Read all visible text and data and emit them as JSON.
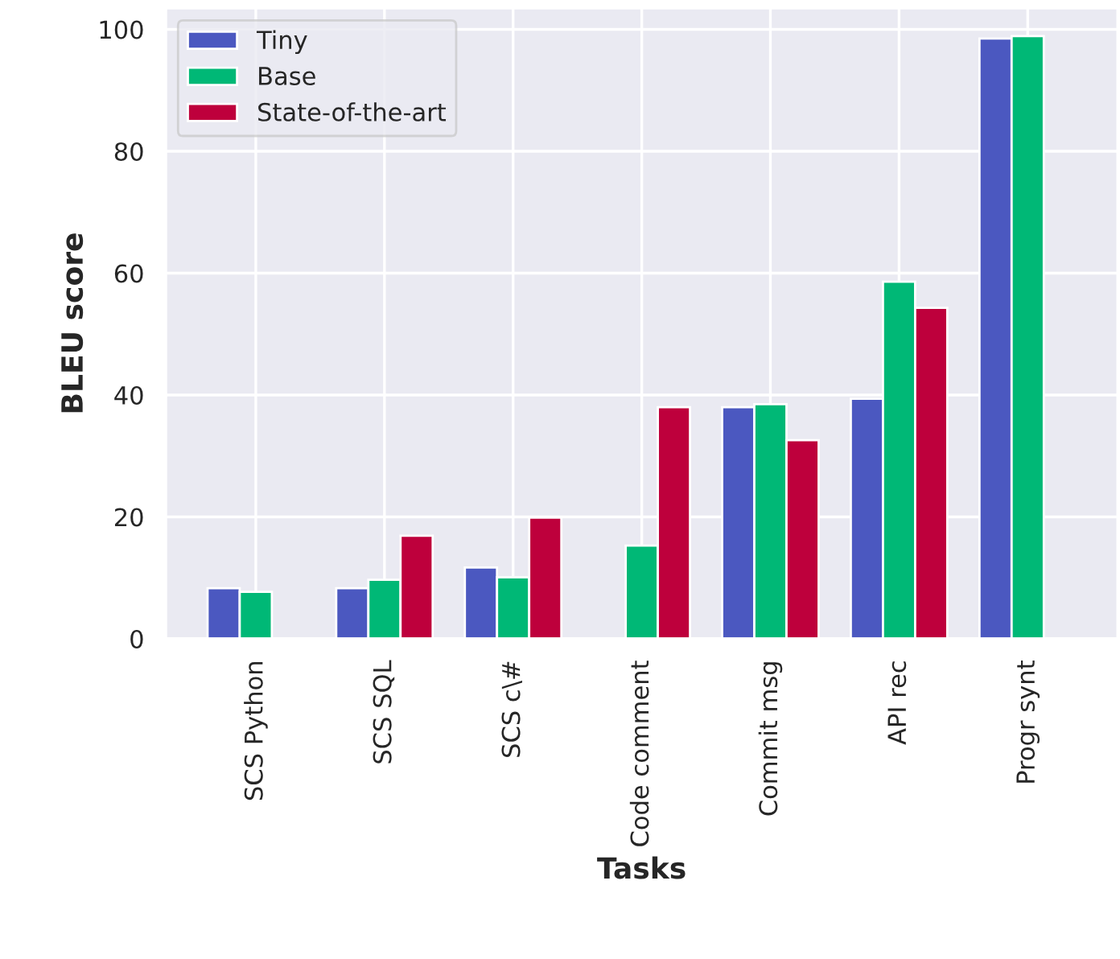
{
  "chart_data": {
    "type": "bar",
    "xlabel": "Tasks",
    "ylabel": "BLEU score",
    "categories": [
      "SCS Python",
      "SCS SQL",
      "SCS c\\#",
      "Code comment",
      "Commit msg",
      "API rec",
      "Progr synt"
    ],
    "series": [
      {
        "name": "Tiny",
        "color": "#4b58c0",
        "values": [
          8.3,
          8.3,
          11.7,
          null,
          38,
          39.4,
          98.5
        ]
      },
      {
        "name": "Base",
        "color": "#00b876",
        "values": [
          7.7,
          9.7,
          10.1,
          15.3,
          38.5,
          58.6,
          98.9
        ]
      },
      {
        "name": "State-of-the-art",
        "color": "#be003c",
        "values": [
          null,
          16.9,
          19.9,
          38,
          32.6,
          54.3,
          null
        ]
      }
    ],
    "ylim": [
      0,
      103.5
    ],
    "yticks": [
      0,
      20,
      40,
      60,
      80,
      100
    ],
    "grid": true,
    "legend": "top left"
  }
}
